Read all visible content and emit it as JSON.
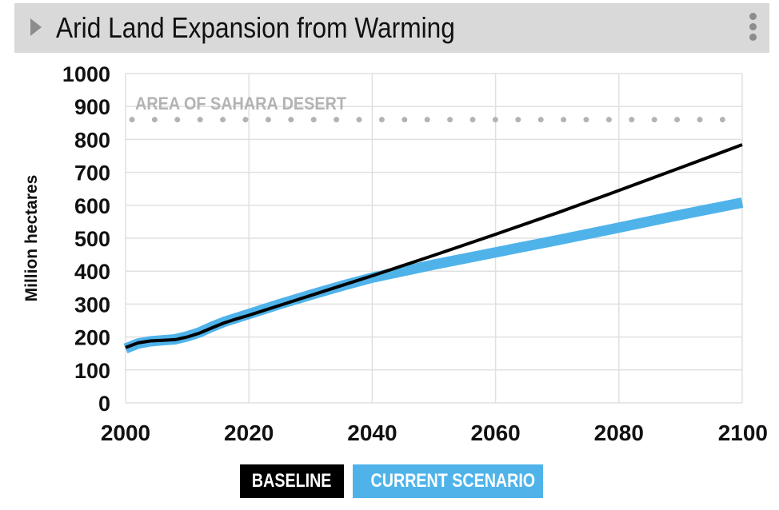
{
  "header": {
    "title": "Arid Land Expansion from Warming",
    "expand_icon": "triangle-right-icon",
    "menu_icon": "vertical-dots-icon"
  },
  "colors": {
    "header_bg": "#d9d9d9",
    "baseline": "#000000",
    "current": "#4fb3ea",
    "grid": "#e0e0e0",
    "reference": "#b3b3b3"
  },
  "legend": {
    "baseline_label": "BASELINE",
    "current_label": "CURRENT SCENARIO"
  },
  "chart_data": {
    "type": "line",
    "title": "Arid Land Expansion from Warming",
    "xlabel": "",
    "ylabel": "Million hectares",
    "xlim": [
      2000,
      2100
    ],
    "ylim": [
      0,
      1000
    ],
    "x_ticks": [
      "2000",
      "2020",
      "2040",
      "2060",
      "2080",
      "2100"
    ],
    "y_ticks": [
      "0",
      "100",
      "200",
      "300",
      "400",
      "500",
      "600",
      "700",
      "800",
      "900",
      "1000"
    ],
    "grid": true,
    "reference_line": {
      "label": "AREA OF SAHARA DESERT",
      "value": 860,
      "style": "dotted"
    },
    "series": [
      {
        "name": "BASELINE",
        "x": [
          2000,
          2002,
          2004,
          2006,
          2008,
          2010,
          2012,
          2014,
          2016,
          2018,
          2020,
          2025,
          2030,
          2035,
          2040,
          2050,
          2060,
          2070,
          2080,
          2090,
          2100
        ],
        "values": [
          168,
          182,
          188,
          190,
          192,
          200,
          212,
          228,
          243,
          255,
          266,
          296,
          326,
          356,
          386,
          448,
          512,
          577,
          645,
          714,
          784
        ]
      },
      {
        "name": "CURRENT SCENARIO",
        "x": [
          2000,
          2002,
          2004,
          2006,
          2008,
          2010,
          2012,
          2014,
          2016,
          2018,
          2020,
          2025,
          2030,
          2035,
          2040,
          2050,
          2060,
          2070,
          2080,
          2090,
          2100
        ],
        "values": [
          165,
          180,
          187,
          190,
          193,
          202,
          214,
          231,
          246,
          258,
          270,
          300,
          328,
          355,
          380,
          420,
          457,
          494,
          532,
          571,
          608
        ]
      }
    ]
  }
}
